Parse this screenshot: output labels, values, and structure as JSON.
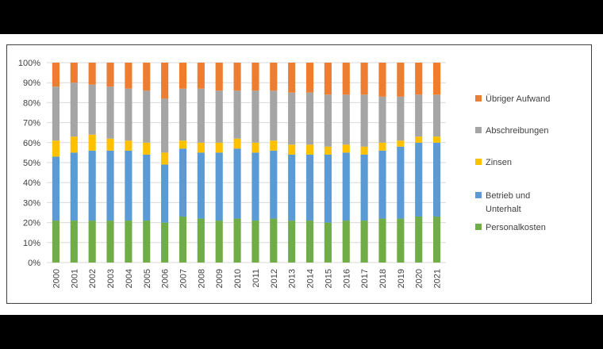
{
  "chart_data": {
    "type": "bar",
    "stacked": true,
    "percent_stacked": true,
    "categories": [
      "2000",
      "2001",
      "2002",
      "2003",
      "2004",
      "2005",
      "2006",
      "2007",
      "2008",
      "2009",
      "2010",
      "2011",
      "2012",
      "2013",
      "2014",
      "2015",
      "2016",
      "2017",
      "2018",
      "2019",
      "2020",
      "2021"
    ],
    "y_ticks": [
      "0%",
      "10%",
      "20%",
      "30%",
      "40%",
      "50%",
      "60%",
      "70%",
      "80%",
      "90%",
      "100%"
    ],
    "ylim": [
      0,
      100
    ],
    "grid": true,
    "legend_position": "right",
    "series": [
      {
        "name": "Personalkosten",
        "color": "#70ad47",
        "values": [
          21,
          21,
          21,
          21,
          21,
          21,
          20,
          23,
          22,
          21,
          22,
          21,
          22,
          21,
          21,
          20,
          21,
          21,
          22,
          22,
          23,
          23
        ]
      },
      {
        "name": "Betrieb und Unterhalt",
        "color": "#5b9bd5",
        "values": [
          32,
          34,
          35,
          35,
          35,
          33,
          29,
          34,
          33,
          34,
          35,
          34,
          34,
          33,
          33,
          34,
          34,
          33,
          34,
          36,
          37,
          37
        ]
      },
      {
        "name": "Zinsen",
        "color": "#ffc000",
        "values": [
          8,
          8,
          8,
          6,
          5,
          6,
          6,
          4,
          5,
          5,
          5,
          5,
          5,
          5,
          5,
          4,
          4,
          4,
          4,
          3,
          3,
          3
        ]
      },
      {
        "name": "Abschreibungen",
        "color": "#a5a5a5",
        "values": [
          27,
          27,
          25,
          26,
          26,
          26,
          27,
          26,
          27,
          26,
          24,
          26,
          25,
          26,
          26,
          26,
          25,
          26,
          23,
          22,
          21,
          21
        ]
      },
      {
        "name": "Übriger Aufwand",
        "color": "#ed7d31",
        "values": [
          12,
          10,
          11,
          12,
          13,
          14,
          18,
          13,
          13,
          14,
          14,
          14,
          14,
          15,
          15,
          16,
          16,
          16,
          17,
          17,
          16,
          16
        ]
      }
    ],
    "legend_order": [
      "Übriger Aufwand",
      "Abschreibungen",
      "Zinsen",
      "Betrieb und Unterhalt",
      "Personalkosten"
    ],
    "legend_lines": {
      "Übriger Aufwand": [
        "Übriger Aufwand"
      ],
      "Abschreibungen": [
        "Abschreibungen"
      ],
      "Zinsen": [
        "Zinsen"
      ],
      "Betrieb und Unterhalt": [
        "Betrieb und",
        "Unterhalt"
      ],
      "Personalkosten": [
        "Personalkosten"
      ]
    }
  }
}
